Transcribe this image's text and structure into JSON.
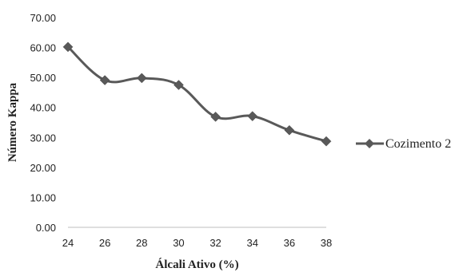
{
  "chart_data": {
    "type": "line",
    "title": "",
    "xlabel": "Álcali Ativo (%)",
    "ylabel": "Número Kappa",
    "x": [
      24,
      26,
      28,
      30,
      32,
      34,
      36,
      38
    ],
    "x_tick_labels": [
      "24",
      "26",
      "28",
      "30",
      "32",
      "34",
      "36",
      "38"
    ],
    "y_tick_labels": [
      "0.00",
      "10.00",
      "20.00",
      "30.00",
      "40.00",
      "50.00",
      "60.00",
      "70.00"
    ],
    "xlim": [
      24,
      38
    ],
    "ylim": [
      0,
      70
    ],
    "grid": false,
    "legend_position": "right",
    "series": [
      {
        "name": "Cozimento 2",
        "color": "#595959",
        "marker": "diamond",
        "smooth": true,
        "values": [
          60.2,
          49.1,
          49.8,
          47.5,
          36.9,
          37.1,
          32.4,
          28.7
        ]
      }
    ]
  }
}
